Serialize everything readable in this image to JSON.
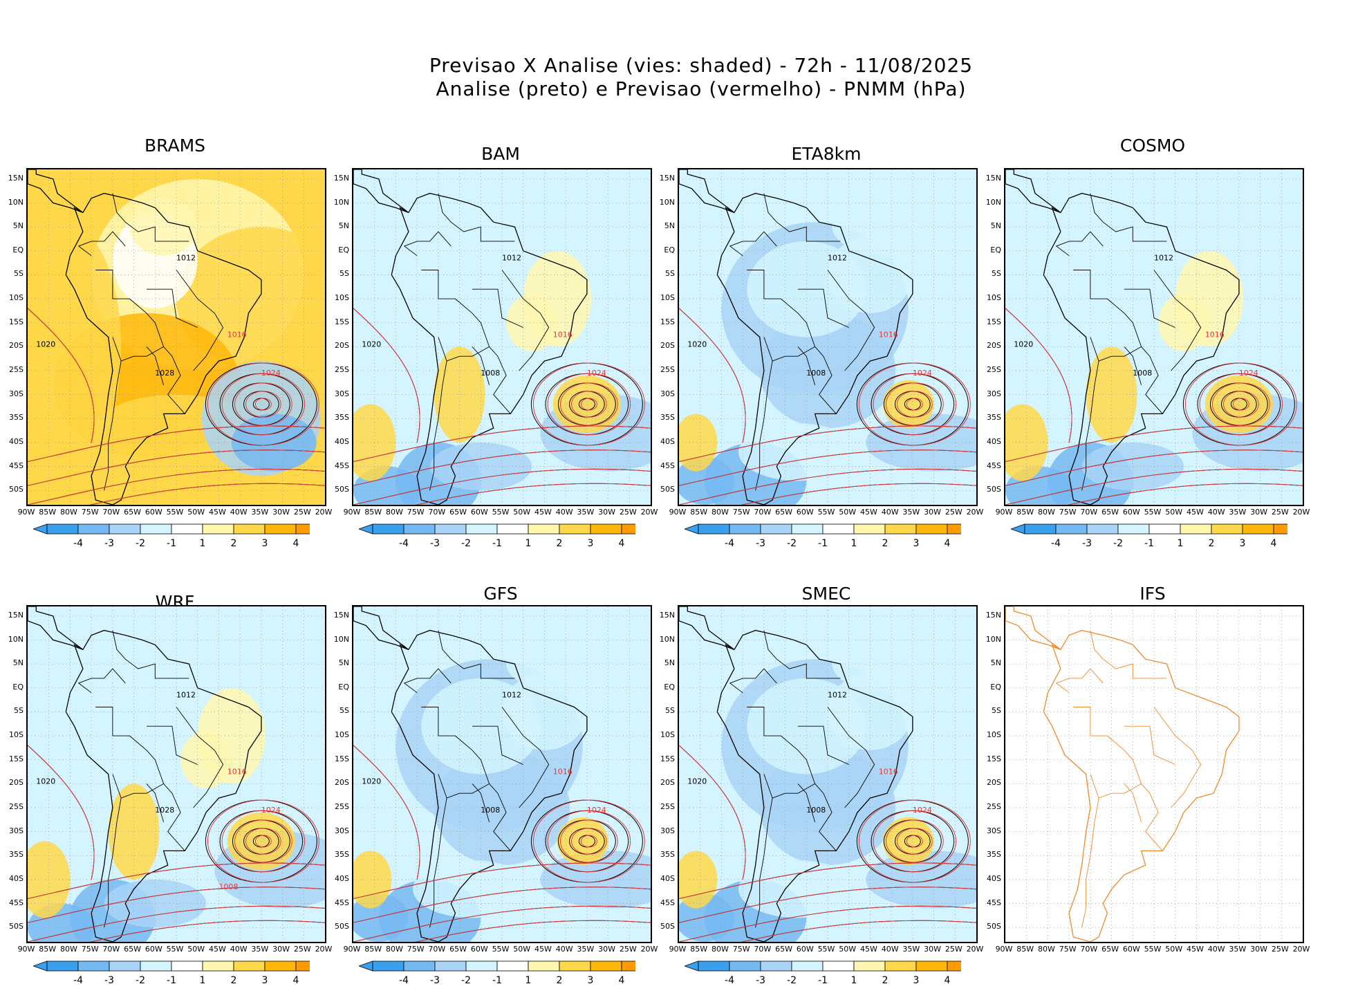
{
  "title": {
    "line1": "Previsao X Analise (vies: shaded) - 72h - 11/08/2025",
    "line2": "Analise (preto) e Previsao (vermelho) - PNMM (hPa)"
  },
  "lat_labels": [
    "15N",
    "10N",
    "5N",
    "EQ",
    "5S",
    "10S",
    "15S",
    "20S",
    "25S",
    "30S",
    "35S",
    "40S",
    "45S",
    "50S"
  ],
  "lon_labels": [
    "90W",
    "85W",
    "80W",
    "75W",
    "70W",
    "65W",
    "60W",
    "55W",
    "50W",
    "45W",
    "40W",
    "35W",
    "30W",
    "25W",
    "20W"
  ],
  "colorbar": {
    "ticks": [
      "-4",
      "-3",
      "-2",
      "-1",
      "1",
      "2",
      "3",
      "4"
    ],
    "colors": [
      "#3aa0ee",
      "#75b9f2",
      "#a9d4f7",
      "#d4f5ff",
      "#ffffff",
      "#fff7b0",
      "#ffd84a",
      "#ffb70a",
      "#ff9a00"
    ]
  },
  "colors": {
    "analysis": "#000000",
    "forecast": "#e43a3a",
    "ifs_coast": "#ee8a2a"
  },
  "panels": [
    {
      "name": "BRAMS",
      "scheme": "warm",
      "contours": [
        "1012",
        "1016",
        "1020",
        "1024",
        "1028"
      ]
    },
    {
      "name": "BAM",
      "scheme": "mixed",
      "contours": [
        "1012",
        "1016",
        "1020",
        "1024",
        "1008"
      ]
    },
    {
      "name": "ETA8km",
      "scheme": "cool",
      "contours": [
        "1012",
        "1016",
        "1020",
        "1024",
        "1008"
      ]
    },
    {
      "name": "COSMO",
      "scheme": "mixed",
      "contours": [
        "1012",
        "1016",
        "1020",
        "1024",
        "1008"
      ]
    },
    {
      "name": "WRF",
      "scheme": "mixed",
      "contours": [
        "1012",
        "1016",
        "1020",
        "1024",
        "1028",
        "1008"
      ]
    },
    {
      "name": "GFS",
      "scheme": "cool",
      "contours": [
        "1012",
        "1016",
        "1020",
        "1024",
        "1008"
      ]
    },
    {
      "name": "SMEC",
      "scheme": "cool",
      "contours": [
        "1012",
        "1016",
        "1020",
        "1024",
        "1008"
      ]
    },
    {
      "name": "IFS",
      "scheme": "empty",
      "contours": []
    }
  ]
}
